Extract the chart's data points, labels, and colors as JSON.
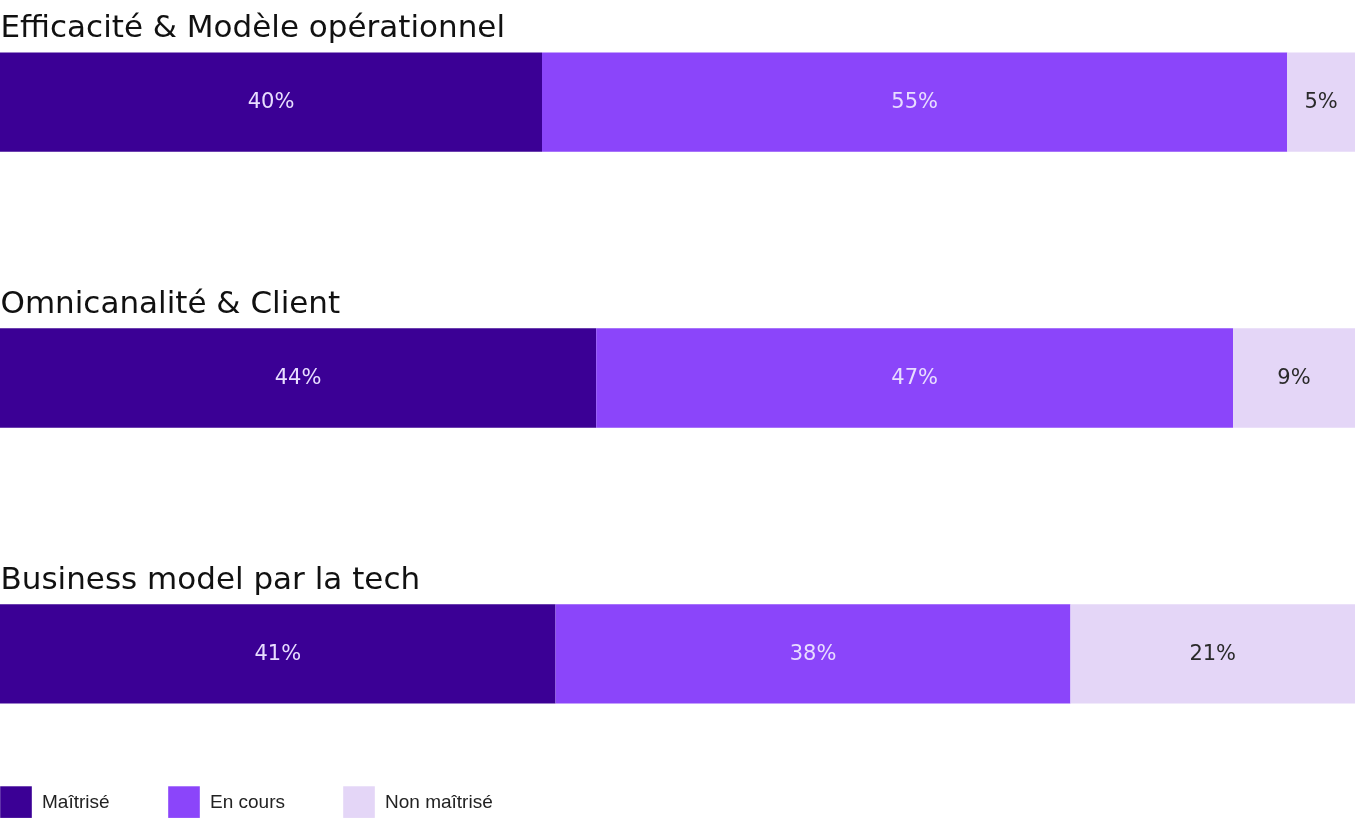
{
  "chart_data": {
    "type": "bar",
    "orientation": "horizontal",
    "stacked": true,
    "data_labels": false,
    "tick_labels": "y",
    "legend": "bottom left",
    "categories": [
      "Efficacité & Modèle opérationnel",
      "Omnicanalité & Client",
      "Business model par la tech"
    ],
    "xlim": [
      0,
      100
    ],
    "series": [
      {
        "name": "Maîtrisé",
        "color": "#3b0095",
        "values": [
          40,
          44,
          41
        ],
        "value_labels": [
          "40%",
          "44%",
          "41%"
        ]
      },
      {
        "name": "En cours",
        "color": "#8b45fa",
        "values": [
          55,
          47,
          38
        ],
        "value_labels": [
          "55%",
          "47%",
          "38%"
        ]
      },
      {
        "name": "Non maîtrisé",
        "color": "#e4d6f7",
        "values": [
          5,
          9,
          21
        ],
        "value_labels": [
          "5%",
          "9%",
          "21%"
        ]
      }
    ]
  }
}
